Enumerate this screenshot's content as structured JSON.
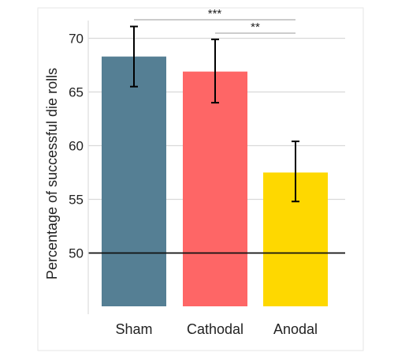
{
  "chart_data": {
    "type": "bar",
    "ylabel": "Percentage of successful die rolls",
    "xlabel": "",
    "categories": [
      "Sham",
      "Cathodal",
      "Anodal"
    ],
    "values": [
      68.3,
      66.9,
      57.5
    ],
    "error_low": [
      65.5,
      64.0,
      54.8
    ],
    "error_high": [
      71.1,
      69.9,
      60.4
    ],
    "colors": [
      "#557f94",
      "#fe6666",
      "#fed800"
    ],
    "ylim": [
      45,
      72
    ],
    "y_ticks": [
      "50",
      "55",
      "60",
      "65",
      "70"
    ],
    "reference_line": 50,
    "grid": true,
    "significance": [
      {
        "from": "Sham",
        "to": "Anodal",
        "label": "***"
      },
      {
        "from": "Cathodal",
        "to": "Anodal",
        "label": "**"
      }
    ]
  }
}
